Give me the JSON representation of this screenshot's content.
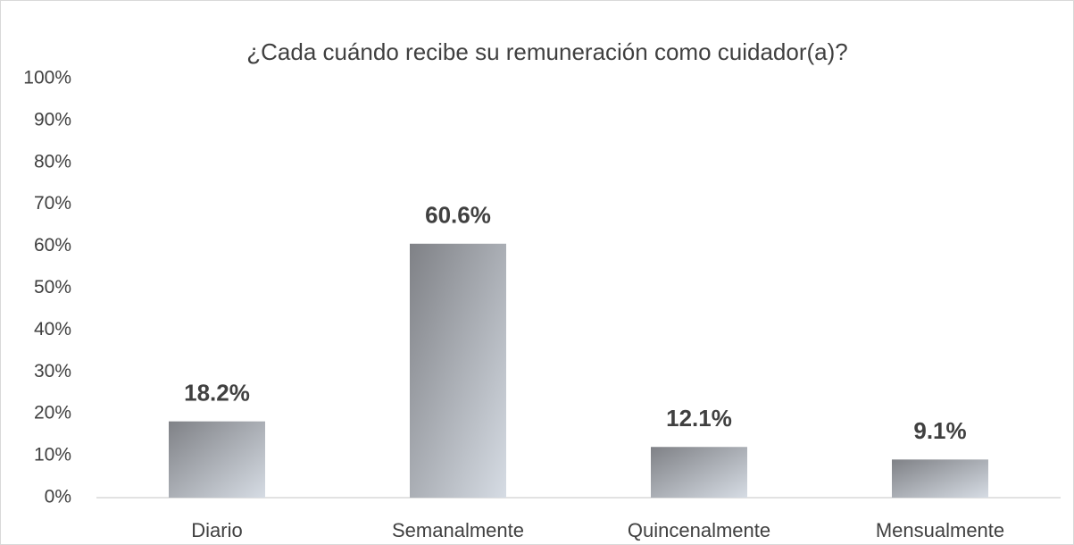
{
  "chart_data": {
    "type": "bar",
    "title": "¿Cada cuándo recibe su remuneración como cuidador(a)?",
    "categories": [
      "Diario",
      "Semanalmente",
      "Quincenalmente",
      "Mensualmente"
    ],
    "values": [
      18.2,
      60.6,
      12.1,
      9.1
    ],
    "value_labels": [
      "18.2%",
      "60.6%",
      "12.1%",
      "9.1%"
    ],
    "color": [
      "#7f8186",
      "#d6dce4"
    ],
    "ylim": [
      0,
      100
    ],
    "yticks": [
      {
        "value": 0,
        "label": "0%"
      },
      {
        "value": 10,
        "label": "10%"
      },
      {
        "value": 20,
        "label": "20%"
      },
      {
        "value": 30,
        "label": "30%"
      },
      {
        "value": 40,
        "label": "40%"
      },
      {
        "value": 50,
        "label": "50%"
      },
      {
        "value": 60,
        "label": "60%"
      },
      {
        "value": 70,
        "label": "70%"
      },
      {
        "value": 80,
        "label": "80%"
      },
      {
        "value": 90,
        "label": "90%"
      },
      {
        "value": 100,
        "label": "100%"
      }
    ],
    "grid": false
  }
}
